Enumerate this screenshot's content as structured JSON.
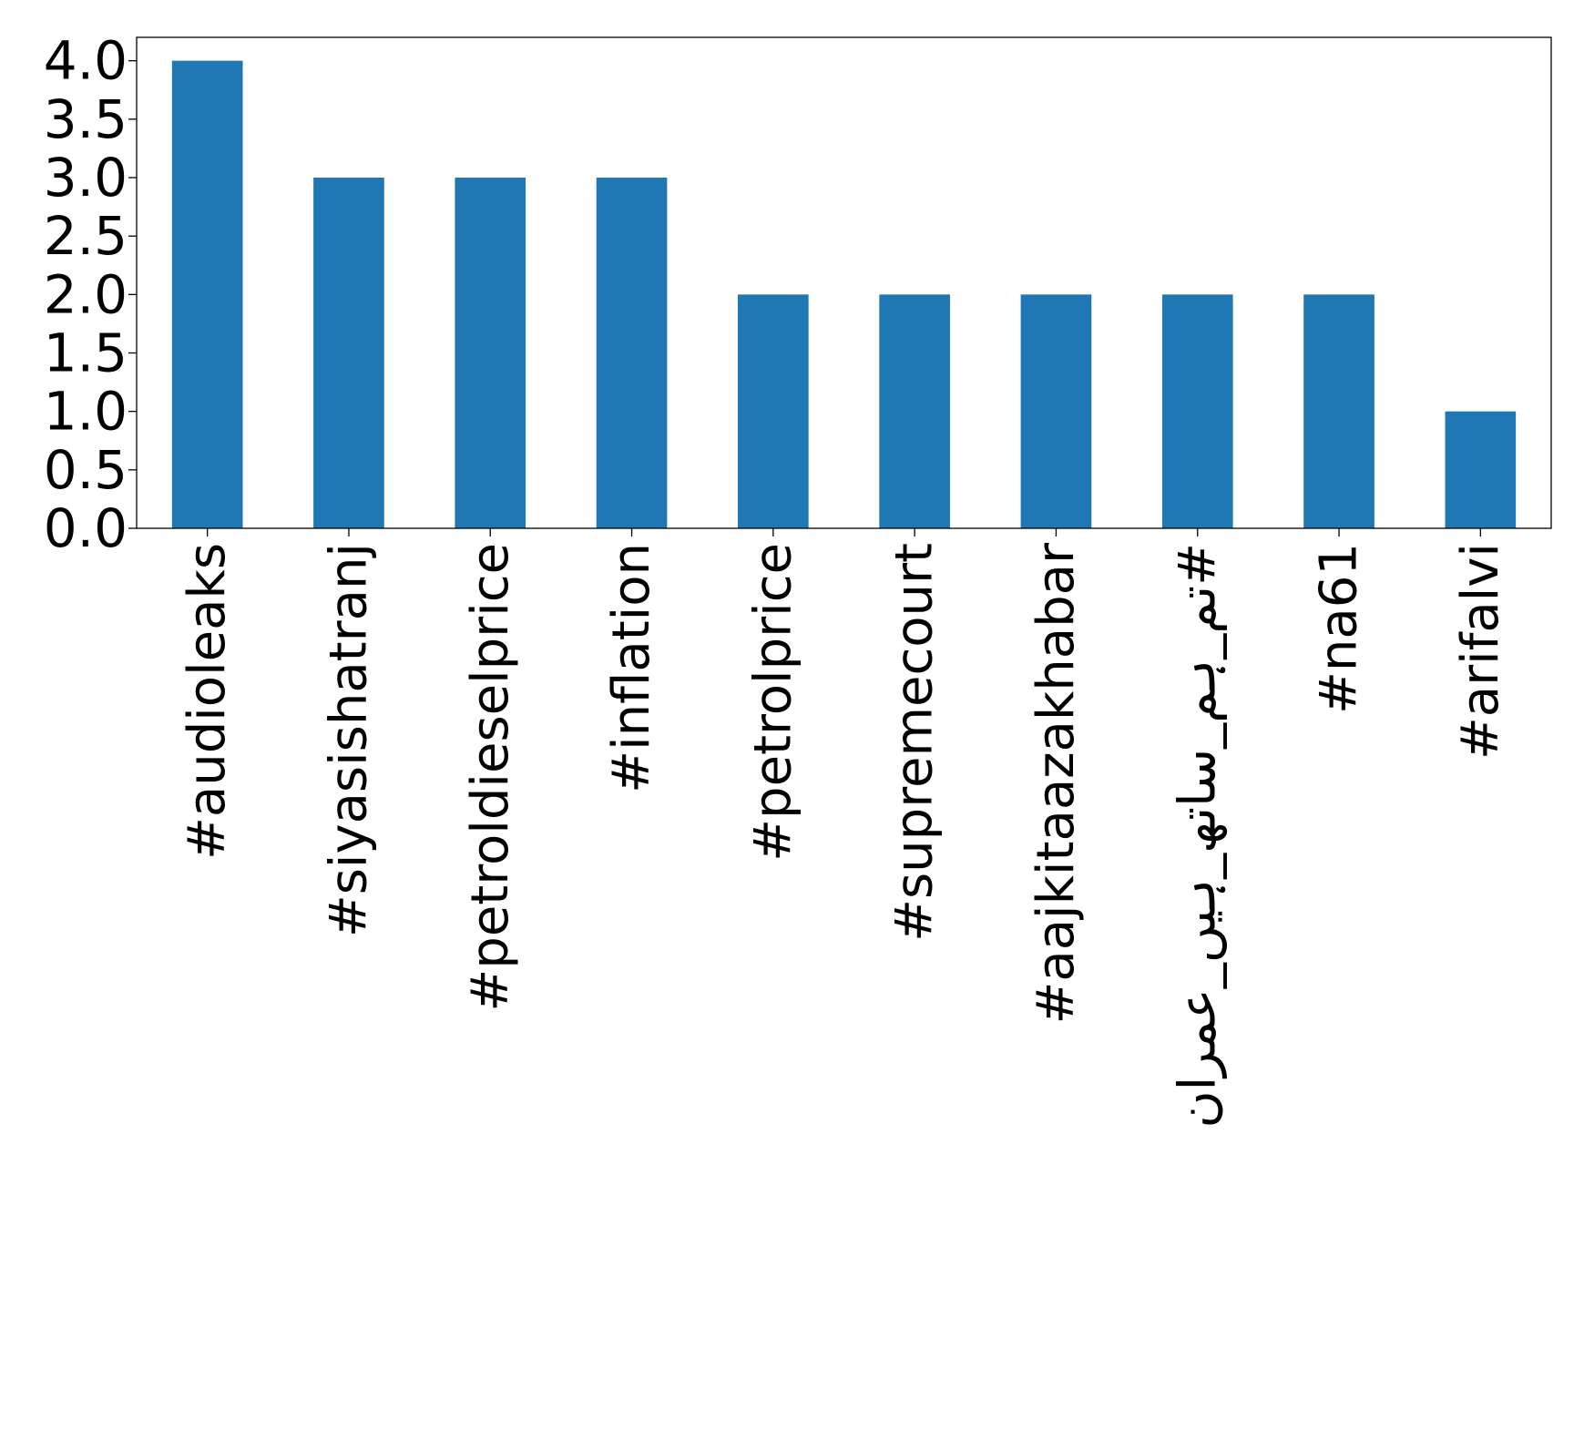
{
  "chart_data": {
    "type": "bar",
    "categories": [
      "#audioleaks",
      "#siyasishatranj",
      "#petroldieselprice",
      "#inflation",
      "#petrolprice",
      "#supremecourt",
      "#aajkitaazakhabar",
      "#تم_ہم_ساتھ_ہیں_عمران",
      "#na61",
      "#arifalvi"
    ],
    "values": [
      4,
      3,
      3,
      3,
      2,
      2,
      2,
      2,
      2,
      1
    ],
    "yticks": [
      "0.0",
      "0.5",
      "1.0",
      "1.5",
      "2.0",
      "2.5",
      "3.0",
      "3.5",
      "4.0"
    ],
    "ylim": [
      0,
      4.2
    ],
    "title": "",
    "xlabel": "",
    "ylabel": "",
    "grid": false,
    "bar_color": "#1f77b4"
  }
}
